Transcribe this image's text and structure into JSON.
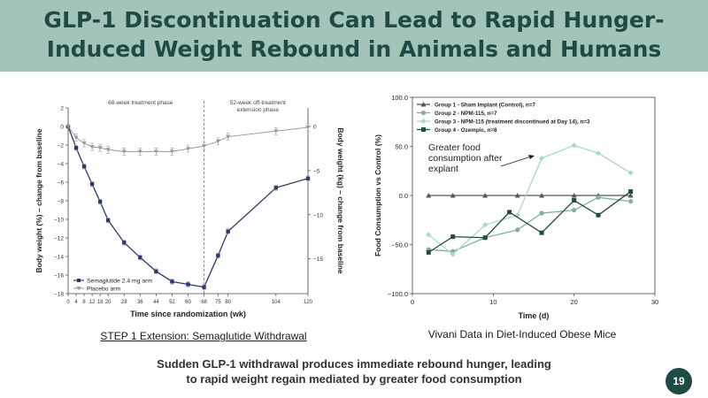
{
  "slide": {
    "title_line1": "GLP-1 Discontinuation Can Lead to Rapid Hunger-",
    "title_line2": "Induced Weight Rebound in Animals and Humans",
    "left_caption": "STEP 1 Extension: Semaglutide Withdrawal",
    "right_caption": "Vivani Data in Diet-Induced Obese Mice",
    "summary_line1": "Sudden GLP-1 withdrawal produces immediate rebound hunger, leading",
    "summary_line2": "to rapid weight regain mediated by greater food consumption",
    "page_number": "19",
    "colors": {
      "header_bg": "#a3c4b9",
      "title": "#1f4a45",
      "badge": "#1f4a45"
    }
  },
  "chart_data": [
    {
      "type": "line",
      "phase_labels": [
        "68-week treatment phase",
        "52-week off-treatment",
        "extension phase"
      ],
      "xlabel": "Time since randomization (wk)",
      "ylabel_left": "Body weight (%) – change from baseline",
      "ylabel_right": "Body weight (kg) – change from baseline",
      "x_ticks": [
        "0",
        "4",
        "8",
        "12",
        "16",
        "20",
        "28",
        "36",
        "44",
        "52",
        "60",
        "68",
        "75",
        "80",
        "104",
        "120"
      ],
      "y_left_ticks": [
        "2",
        "0",
        "−2",
        "−4",
        "−6",
        "−8",
        "−10",
        "−12",
        "−14",
        "−16",
        "−18"
      ],
      "y_right_ticks": [
        "0",
        "−5",
        "−10",
        "−15"
      ],
      "xlim": [
        0,
        120
      ],
      "ylim": [
        -18,
        2
      ],
      "divider_week": 68,
      "series": [
        {
          "name": "Semaglutide 2.4 mg arm",
          "x": [
            0,
            4,
            8,
            12,
            16,
            20,
            28,
            36,
            44,
            52,
            60,
            68,
            75,
            80,
            104,
            120
          ],
          "values": [
            0,
            -2.3,
            -4.3,
            -6.2,
            -8.1,
            -10.1,
            -12.5,
            -14.1,
            -15.6,
            -16.7,
            -17.0,
            -17.3,
            -13.9,
            -11.3,
            -6.6,
            -5.6
          ],
          "color": "#2b3a6b"
        },
        {
          "name": "Placebo arm",
          "x": [
            0,
            4,
            8,
            12,
            16,
            20,
            28,
            36,
            44,
            52,
            60,
            68,
            75,
            80,
            104,
            120
          ],
          "values": [
            0,
            -1.2,
            -1.8,
            -2.2,
            -2.3,
            -2.5,
            -2.7,
            -2.7,
            -2.7,
            -2.7,
            -2.4,
            -2.1,
            -1.6,
            -1.1,
            -0.5,
            -0.1
          ],
          "color": "#9a9a9a"
        }
      ]
    },
    {
      "type": "line",
      "xlabel": "Time (d)",
      "ylabel": "Food Consumption vs Control (%)",
      "x_ticks": [
        "0",
        "10",
        "20",
        "30"
      ],
      "y_ticks": [
        "100.0",
        "50.0",
        "0.0",
        "−50.0",
        "−100.0"
      ],
      "xlim": [
        0,
        30
      ],
      "ylim": [
        -100,
        100
      ],
      "annotation": [
        "Greater food",
        "consumption after",
        "explant"
      ],
      "series": [
        {
          "name": "Group 1 - Sham Implant (Control), n=7",
          "color": "#555555",
          "marker": "triangle",
          "x": [
            2,
            5,
            9,
            13,
            16,
            20,
            23,
            27
          ],
          "values": [
            0,
            0,
            0,
            0,
            0,
            0,
            0,
            0
          ]
        },
        {
          "name": "Group 2 - NPM-115, n=7",
          "color": "#7fb0a0",
          "marker": "circle",
          "x": [
            2,
            5,
            9,
            13,
            16,
            20,
            23,
            27
          ],
          "values": [
            -55,
            -57,
            -43,
            -35,
            -18,
            -15,
            -2,
            -6
          ]
        },
        {
          "name": "Group 3 - NPM-115 (treatment discontinued at Day 14), n=3",
          "color": "#a6d8ce",
          "marker": "diamond",
          "x": [
            2,
            5,
            9,
            13,
            16,
            20,
            23,
            27
          ],
          "values": [
            -40,
            -60,
            -30,
            -20,
            38,
            51,
            43,
            23
          ]
        },
        {
          "name": "Group 4 - Ozempic, n=8",
          "color": "#1f4a45",
          "marker": "square",
          "x": [
            2,
            5,
            9,
            12,
            16,
            20,
            23,
            27
          ],
          "values": [
            -58,
            -42,
            -43,
            -17,
            -38,
            -5,
            -20,
            4
          ]
        }
      ]
    }
  ]
}
